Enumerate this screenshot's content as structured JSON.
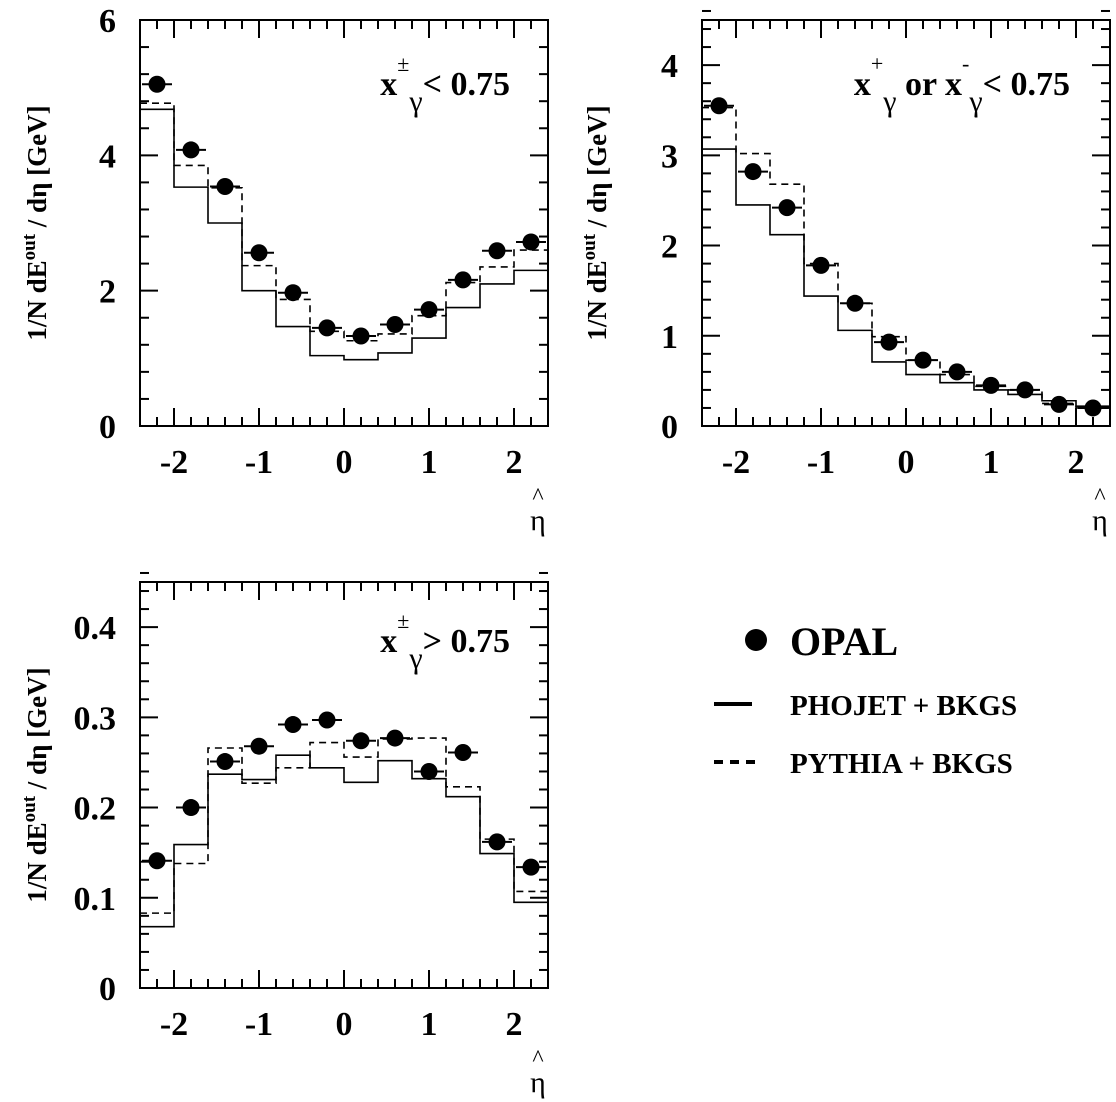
{
  "axis_label": {
    "y_prefix": "1/N dE",
    "y_sup": "out",
    "y_middle": " / d",
    "y_eta": "η",
    "y_suffix": "  [GeV]",
    "x_eta": "η",
    "hat": "^"
  },
  "legend": {
    "data_label": "OPAL",
    "phojet_label": "PHOJET + BKGS",
    "pythia_label": "PYTHIA + BKGS"
  },
  "chart_data": [
    {
      "type": "histogram",
      "panel": "top-left",
      "annotation": {
        "x": "x",
        "sup": "±",
        "sub": "γ",
        "rest": "< 0.75"
      },
      "xlim": [
        -2.4,
        2.4
      ],
      "ylim": [
        0,
        6
      ],
      "x_ticks": [
        -2,
        -1,
        0,
        1,
        2
      ],
      "x_tick_labels": [
        "-2",
        "-1",
        "0",
        "1",
        "2"
      ],
      "y_ticks": [
        0,
        2,
        4,
        6
      ],
      "y_tick_labels": [
        "0",
        "2",
        "4",
        "6"
      ],
      "bin_edges": [
        -2.4,
        -2.0,
        -1.6,
        -1.2,
        -0.8,
        -0.4,
        0.0,
        0.4,
        0.8,
        1.2,
        1.6,
        2.0,
        2.4
      ],
      "x": [
        -2.2,
        -1.8,
        -1.4,
        -1.0,
        -0.6,
        -0.2,
        0.2,
        0.6,
        1.0,
        1.4,
        1.8,
        2.2
      ],
      "series": [
        {
          "name": "OPAL",
          "style": "points",
          "values": [
            5.05,
            4.08,
            3.54,
            2.56,
            1.97,
            1.45,
            1.33,
            1.5,
            1.72,
            2.16,
            2.59,
            2.72
          ]
        },
        {
          "name": "PHOJET + BKGS",
          "style": "solid",
          "values": [
            4.68,
            3.53,
            3.0,
            2.0,
            1.47,
            1.04,
            0.98,
            1.08,
            1.3,
            1.75,
            2.1,
            2.3
          ]
        },
        {
          "name": "PYTHIA + BKGS",
          "style": "dashed",
          "values": [
            4.77,
            3.85,
            3.52,
            2.37,
            1.87,
            1.4,
            1.26,
            1.36,
            1.63,
            2.12,
            2.35,
            2.6
          ]
        }
      ]
    },
    {
      "type": "histogram",
      "panel": "top-right",
      "annotation": {
        "x1": "x",
        "sup1": "+",
        "sub1": "γ",
        "mid": " or  ",
        "x2": "x",
        "sup2": "-",
        "sub2": "γ",
        "rest": "< 0.75"
      },
      "xlim": [
        -2.4,
        2.4
      ],
      "ylim": [
        0,
        4.5
      ],
      "x_ticks": [
        -2,
        -1,
        0,
        1,
        2
      ],
      "x_tick_labels": [
        "-2",
        "-1",
        "0",
        "1",
        "2"
      ],
      "y_ticks": [
        0,
        1,
        2,
        3,
        4
      ],
      "y_tick_labels": [
        "0",
        "1",
        "2",
        "3",
        "4"
      ],
      "bin_edges": [
        -2.4,
        -2.0,
        -1.6,
        -1.2,
        -0.8,
        -0.4,
        0.0,
        0.4,
        0.8,
        1.2,
        1.6,
        2.0,
        2.4
      ],
      "x": [
        -2.2,
        -1.8,
        -1.4,
        -1.0,
        -0.6,
        -0.2,
        0.2,
        0.6,
        1.0,
        1.4,
        1.8,
        2.2
      ],
      "series": [
        {
          "name": "OPAL",
          "style": "points",
          "values": [
            3.55,
            2.82,
            2.42,
            1.78,
            1.36,
            0.93,
            0.73,
            0.6,
            0.45,
            0.4,
            0.24,
            0.2
          ]
        },
        {
          "name": "PHOJET + BKGS",
          "style": "solid",
          "values": [
            3.07,
            2.45,
            2.12,
            1.44,
            1.06,
            0.71,
            0.57,
            0.48,
            0.4,
            0.35,
            0.28,
            0.22
          ]
        },
        {
          "name": "PYTHIA + BKGS",
          "style": "dashed",
          "values": [
            3.53,
            3.02,
            2.68,
            1.8,
            1.36,
            0.99,
            0.73,
            0.57,
            0.44,
            0.4,
            0.25,
            0.2
          ]
        }
      ]
    },
    {
      "type": "histogram",
      "panel": "bottom-left",
      "annotation": {
        "x": "x",
        "sup": "±",
        "sub": "γ",
        "rest": "> 0.75"
      },
      "xlim": [
        -2.4,
        2.4
      ],
      "ylim": [
        0,
        0.45
      ],
      "x_ticks": [
        -2,
        -1,
        0,
        1,
        2
      ],
      "x_tick_labels": [
        "-2",
        "-1",
        "0",
        "1",
        "2"
      ],
      "y_ticks": [
        0,
        0.1,
        0.2,
        0.3,
        0.4
      ],
      "y_tick_labels": [
        "0",
        "0.1",
        "0.2",
        "0.3",
        "0.4"
      ],
      "bin_edges": [
        -2.4,
        -2.0,
        -1.6,
        -1.2,
        -0.8,
        -0.4,
        0.0,
        0.4,
        0.8,
        1.2,
        1.6,
        2.0,
        2.4
      ],
      "x": [
        -2.2,
        -1.8,
        -1.4,
        -1.0,
        -0.6,
        -0.2,
        0.2,
        0.6,
        1.0,
        1.4,
        1.8,
        2.2
      ],
      "series": [
        {
          "name": "OPAL",
          "style": "points",
          "values": [
            0.141,
            0.2,
            0.251,
            0.268,
            0.292,
            0.297,
            0.274,
            0.277,
            0.24,
            0.261,
            0.162,
            0.134
          ]
        },
        {
          "name": "PHOJET + BKGS",
          "style": "solid",
          "values": [
            0.068,
            0.159,
            0.237,
            0.231,
            0.258,
            0.244,
            0.228,
            0.252,
            0.232,
            0.212,
            0.149,
            0.095
          ]
        },
        {
          "name": "PYTHIA + BKGS",
          "style": "dashed",
          "values": [
            0.083,
            0.138,
            0.266,
            0.227,
            0.244,
            0.272,
            0.256,
            0.276,
            0.277,
            0.223,
            0.165,
            0.107
          ]
        }
      ]
    }
  ]
}
